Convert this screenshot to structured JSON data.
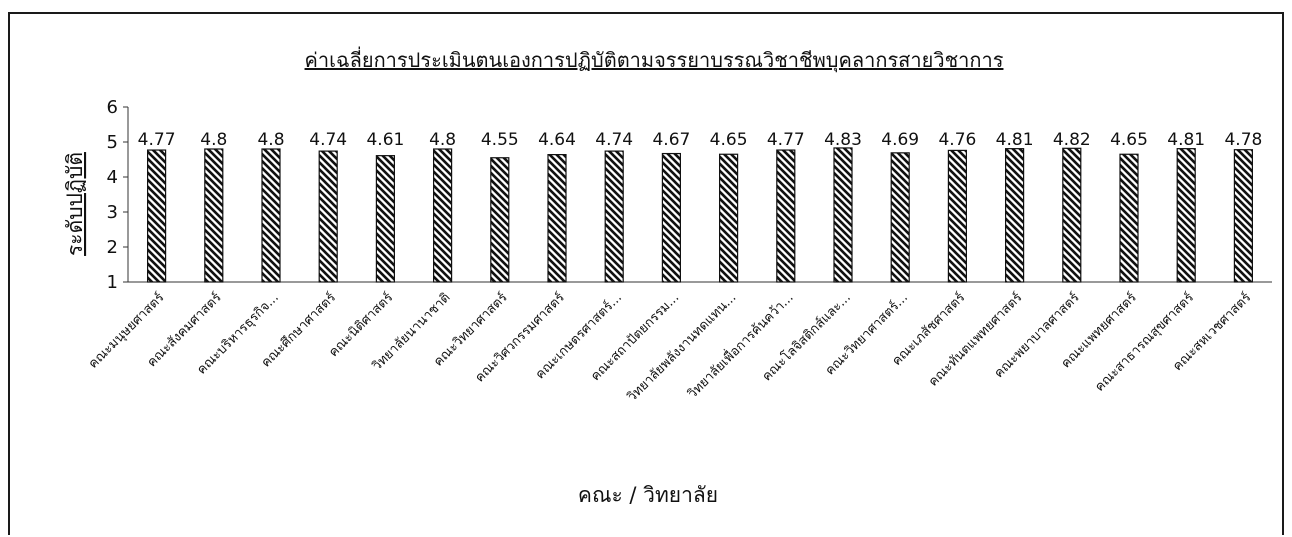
{
  "chart_data": {
    "type": "bar",
    "title": "ค่าเฉลี่ยการประเมินตนเองการปฏิบัติตามจรรยาบรรณวิชาชีพบุคลากรสายวิชาการ",
    "xlabel": "คณะ / วิทยาลัย",
    "ylabel": "ระดับปฏิบัติ",
    "ylim": [
      1,
      6
    ],
    "yticks": [
      "1",
      "2",
      "3",
      "4",
      "5",
      "6"
    ],
    "categories": [
      "คณะมนุษยศาสตร์",
      "คณะสังคมศาสตร์",
      "คณะบริหารธุรกิจ...",
      "คณะศึกษาศาสตร์",
      "คณะนิติศาสตร์",
      "วิทยาลัยนานาชาติ",
      "คณะวิทยาศาสตร์",
      "คณะวิศวกรรมศาสตร์",
      "คณะเกษตรศาสตร์...",
      "คณะสถาปัตยกรรม...",
      "วิทยาลัยพลังงานทดแทน...",
      "วิทยาลัยเพื่อการค้นคว้า...",
      "คณะโลจิสติกส์และ...",
      "คณะวิทยาศาสตร์...",
      "คณะเภสัชศาสตร์",
      "คณะทันตแพทยศาสตร์",
      "คณะพยาบาลศาสตร์",
      "คณะแพทยศาสตร์",
      "คณะสาธารณสุขศาสตร์",
      "คณะสหเวชศาสตร์"
    ],
    "values": [
      4.77,
      4.8,
      4.8,
      4.74,
      4.61,
      4.8,
      4.55,
      4.64,
      4.74,
      4.67,
      4.65,
      4.77,
      4.83,
      4.69,
      4.76,
      4.81,
      4.82,
      4.65,
      4.81,
      4.78
    ],
    "data_labels": [
      "4.77",
      "4.8",
      "4.8",
      "4.74",
      "4.61",
      "4.8",
      "4.55",
      "4.64",
      "4.74",
      "4.67",
      "4.65",
      "4.77",
      "4.83",
      "4.69",
      "4.76",
      "4.81",
      "4.82",
      "4.65",
      "4.81",
      "4.78"
    ],
    "bar_pattern": "diagonal-hatch",
    "colors": {
      "bar_stroke": "#111111",
      "hatch": "#111111",
      "bar_fill": "#ffffff",
      "axis": "#333333"
    },
    "grid": false,
    "legend": "none"
  }
}
